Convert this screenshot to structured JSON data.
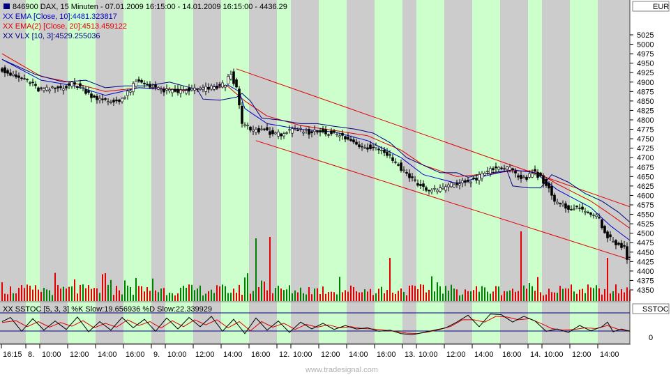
{
  "window": {
    "currency_button": "EUR",
    "indicator_button": "SSTOC",
    "watermark": "www.tradesignal.com"
  },
  "legend": {
    "instrument": "846900  DAX, 15 Minuten - 07.01.2009 16:15:00 - 14.01.2009 16:15:00 - 4436.29",
    "ema10": "XX EMA [Close, 10]:4481.323817",
    "ema20": "XX EMA(2) [Close, 20]:4513.459122",
    "vlx": "XX VLX [10, 3]:4529.255036",
    "sstoc": "XX SSTOC [5, 3, 3] %K Slow:19.656936 %D Slow:22.339929"
  },
  "colors": {
    "bull": "#008000",
    "bear": "#e00000",
    "ema10": "#0000cc",
    "ema20": "#e00000",
    "vlx": "#000080",
    "channel": "#e00000",
    "band_green": "#ccffcc",
    "band_gray": "#cccccc",
    "background": "#ffffff"
  },
  "chart_data": {
    "type": "candlestick",
    "y_range": [
      4320,
      5075
    ],
    "y_ticks": [
      4350,
      4375,
      4400,
      4425,
      4450,
      4475,
      4500,
      4525,
      4550,
      4575,
      4600,
      4625,
      4650,
      4675,
      4700,
      4725,
      4750,
      4775,
      4800,
      4825,
      4850,
      4875,
      4900,
      4925,
      4950,
      4975,
      5000,
      5025
    ],
    "x_labels": [
      "16:15",
      "8.",
      "10:00",
      "12:00",
      "14:00",
      "16:00",
      "9.",
      "10:00",
      "12:00",
      "14:00",
      "16:00",
      "12.",
      "10:00",
      "12:00",
      "14:00",
      "16:00",
      "13.",
      "10:00",
      "12:00",
      "14:00",
      "16:00",
      "14.",
      "10:00",
      "12:00",
      "14:00"
    ],
    "price_path": [
      [
        0,
        4940
      ],
      [
        5,
        4915
      ],
      [
        10,
        4905
      ],
      [
        14,
        4880
      ],
      [
        18,
        4880
      ],
      [
        22,
        4885
      ],
      [
        26,
        4895
      ],
      [
        29,
        4888
      ],
      [
        33,
        4865
      ],
      [
        37,
        4850
      ],
      [
        41,
        4848
      ],
      [
        45,
        4860
      ],
      [
        49,
        4900
      ],
      [
        53,
        4895
      ],
      [
        57,
        4880
      ],
      [
        61,
        4875
      ],
      [
        65,
        4875
      ],
      [
        69,
        4880
      ],
      [
        73,
        4882
      ],
      [
        77,
        4885
      ],
      [
        81,
        4895
      ],
      [
        83,
        4925
      ],
      [
        85,
        4880
      ],
      [
        87,
        4790
      ],
      [
        91,
        4770
      ],
      [
        95,
        4775
      ],
      [
        99,
        4760
      ],
      [
        103,
        4768
      ],
      [
        107,
        4772
      ],
      [
        111,
        4768
      ],
      [
        115,
        4770
      ],
      [
        119,
        4765
      ],
      [
        123,
        4755
      ],
      [
        127,
        4740
      ],
      [
        131,
        4728
      ],
      [
        135,
        4730
      ],
      [
        139,
        4710
      ],
      [
        143,
        4680
      ],
      [
        147,
        4650
      ],
      [
        151,
        4625
      ],
      [
        155,
        4610
      ],
      [
        159,
        4620
      ],
      [
        163,
        4630
      ],
      [
        167,
        4635
      ],
      [
        171,
        4645
      ],
      [
        174,
        4660
      ],
      [
        177,
        4670
      ],
      [
        180,
        4675
      ],
      [
        183,
        4668
      ],
      [
        186,
        4650
      ],
      [
        189,
        4645
      ],
      [
        191,
        4665
      ],
      [
        194,
        4648
      ],
      [
        197,
        4620
      ],
      [
        199,
        4580
      ],
      [
        203,
        4570
      ],
      [
        207,
        4565
      ],
      [
        211,
        4560
      ],
      [
        215,
        4535
      ],
      [
        218,
        4490
      ],
      [
        221,
        4470
      ],
      [
        224,
        4460
      ],
      [
        225,
        4436
      ]
    ],
    "ema10_path": [
      [
        0,
        4960
      ],
      [
        14,
        4905
      ],
      [
        26,
        4890
      ],
      [
        37,
        4865
      ],
      [
        49,
        4885
      ],
      [
        65,
        4878
      ],
      [
        81,
        4892
      ],
      [
        85,
        4875
      ],
      [
        87,
        4830
      ],
      [
        95,
        4790
      ],
      [
        107,
        4775
      ],
      [
        119,
        4768
      ],
      [
        131,
        4745
      ],
      [
        143,
        4700
      ],
      [
        151,
        4655
      ],
      [
        163,
        4632
      ],
      [
        175,
        4655
      ],
      [
        183,
        4668
      ],
      [
        191,
        4660
      ],
      [
        199,
        4615
      ],
      [
        211,
        4568
      ],
      [
        218,
        4520
      ],
      [
        225,
        4481
      ]
    ],
    "ema20_path": [
      [
        0,
        4975
      ],
      [
        14,
        4915
      ],
      [
        26,
        4897
      ],
      [
        37,
        4875
      ],
      [
        49,
        4885
      ],
      [
        65,
        4880
      ],
      [
        81,
        4888
      ],
      [
        87,
        4850
      ],
      [
        95,
        4810
      ],
      [
        107,
        4785
      ],
      [
        119,
        4772
      ],
      [
        131,
        4758
      ],
      [
        143,
        4720
      ],
      [
        151,
        4680
      ],
      [
        163,
        4650
      ],
      [
        175,
        4658
      ],
      [
        183,
        4665
      ],
      [
        191,
        4665
      ],
      [
        199,
        4630
      ],
      [
        211,
        4585
      ],
      [
        218,
        4550
      ],
      [
        225,
        4513
      ]
    ],
    "vlx_path": [
      [
        0,
        4960
      ],
      [
        12,
        4920
      ],
      [
        22,
        4900
      ],
      [
        30,
        4905
      ],
      [
        37,
        4885
      ],
      [
        44,
        4890
      ],
      [
        52,
        4890
      ],
      [
        60,
        4900
      ],
      [
        70,
        4880
      ],
      [
        72,
        4855
      ],
      [
        78,
        4852
      ],
      [
        84,
        4860
      ],
      [
        86,
        4870
      ],
      [
        89,
        4850
      ],
      [
        93,
        4805
      ],
      [
        99,
        4800
      ],
      [
        107,
        4790
      ],
      [
        113,
        4790
      ],
      [
        119,
        4783
      ],
      [
        127,
        4775
      ],
      [
        133,
        4765
      ],
      [
        139,
        4740
      ],
      [
        145,
        4700
      ],
      [
        151,
        4680
      ],
      [
        157,
        4660
      ],
      [
        163,
        4660
      ],
      [
        167,
        4648
      ],
      [
        175,
        4660
      ],
      [
        181,
        4665
      ],
      [
        183,
        4625
      ],
      [
        189,
        4620
      ],
      [
        193,
        4620
      ],
      [
        197,
        4655
      ],
      [
        203,
        4635
      ],
      [
        209,
        4605
      ],
      [
        215,
        4585
      ],
      [
        221,
        4555
      ],
      [
        225,
        4529
      ]
    ],
    "channel_upper": [
      [
        84,
        4935
      ],
      [
        225,
        4570
      ]
    ],
    "channel_lower": [
      [
        91,
        4745
      ],
      [
        225,
        4430
      ]
    ],
    "volume_peak_bars": [
      [
        91,
        90
      ],
      [
        96,
        92
      ],
      [
        139,
        62
      ],
      [
        186,
        100
      ],
      [
        217,
        62
      ]
    ],
    "stoch_k": [
      [
        0,
        62
      ],
      [
        3,
        80
      ],
      [
        7,
        20
      ],
      [
        11,
        75
      ],
      [
        15,
        25
      ],
      [
        19,
        65
      ],
      [
        23,
        28
      ],
      [
        27,
        82
      ],
      [
        31,
        18
      ],
      [
        35,
        62
      ],
      [
        39,
        25
      ],
      [
        43,
        80
      ],
      [
        47,
        35
      ],
      [
        51,
        72
      ],
      [
        55,
        20
      ],
      [
        59,
        78
      ],
      [
        63,
        30
      ],
      [
        67,
        80
      ],
      [
        71,
        40
      ],
      [
        75,
        85
      ],
      [
        79,
        20
      ],
      [
        83,
        72
      ],
      [
        87,
        10
      ],
      [
        91,
        78
      ],
      [
        95,
        25
      ],
      [
        99,
        65
      ],
      [
        103,
        15
      ],
      [
        107,
        60
      ],
      [
        111,
        30
      ],
      [
        115,
        55
      ],
      [
        119,
        28
      ],
      [
        123,
        45
      ],
      [
        127,
        30
      ],
      [
        131,
        35
      ],
      [
        135,
        20
      ],
      [
        139,
        25
      ],
      [
        143,
        10
      ],
      [
        147,
        5
      ],
      [
        151,
        15
      ],
      [
        155,
        25
      ],
      [
        159,
        35
      ],
      [
        163,
        60
      ],
      [
        167,
        90
      ],
      [
        171,
        40
      ],
      [
        175,
        95
      ],
      [
        179,
        92
      ],
      [
        183,
        60
      ],
      [
        187,
        85
      ],
      [
        191,
        65
      ],
      [
        195,
        20
      ],
      [
        199,
        30
      ],
      [
        203,
        15
      ],
      [
        207,
        45
      ],
      [
        211,
        22
      ],
      [
        215,
        40
      ],
      [
        217,
        60
      ],
      [
        219,
        18
      ],
      [
        222,
        30
      ],
      [
        225,
        19.66
      ]
    ],
    "stoch_d": [
      [
        0,
        58
      ],
      [
        5,
        66
      ],
      [
        9,
        40
      ],
      [
        13,
        62
      ],
      [
        17,
        38
      ],
      [
        21,
        58
      ],
      [
        25,
        42
      ],
      [
        29,
        66
      ],
      [
        33,
        35
      ],
      [
        37,
        55
      ],
      [
        41,
        38
      ],
      [
        45,
        70
      ],
      [
        49,
        45
      ],
      [
        53,
        62
      ],
      [
        57,
        34
      ],
      [
        61,
        66
      ],
      [
        65,
        40
      ],
      [
        69,
        70
      ],
      [
        73,
        48
      ],
      [
        77,
        70
      ],
      [
        81,
        35
      ],
      [
        85,
        62
      ],
      [
        89,
        22
      ],
      [
        93,
        62
      ],
      [
        97,
        38
      ],
      [
        101,
        55
      ],
      [
        105,
        28
      ],
      [
        109,
        50
      ],
      [
        113,
        38
      ],
      [
        117,
        48
      ],
      [
        121,
        35
      ],
      [
        125,
        40
      ],
      [
        129,
        32
      ],
      [
        133,
        30
      ],
      [
        137,
        25
      ],
      [
        141,
        20
      ],
      [
        145,
        12
      ],
      [
        149,
        10
      ],
      [
        153,
        18
      ],
      [
        157,
        28
      ],
      [
        161,
        42
      ],
      [
        165,
        70
      ],
      [
        169,
        70
      ],
      [
        173,
        60
      ],
      [
        177,
        85
      ],
      [
        181,
        82
      ],
      [
        185,
        70
      ],
      [
        189,
        75
      ],
      [
        193,
        55
      ],
      [
        197,
        32
      ],
      [
        201,
        25
      ],
      [
        205,
        28
      ],
      [
        209,
        35
      ],
      [
        213,
        32
      ],
      [
        217,
        45
      ],
      [
        221,
        28
      ],
      [
        225,
        22.34
      ]
    ]
  }
}
